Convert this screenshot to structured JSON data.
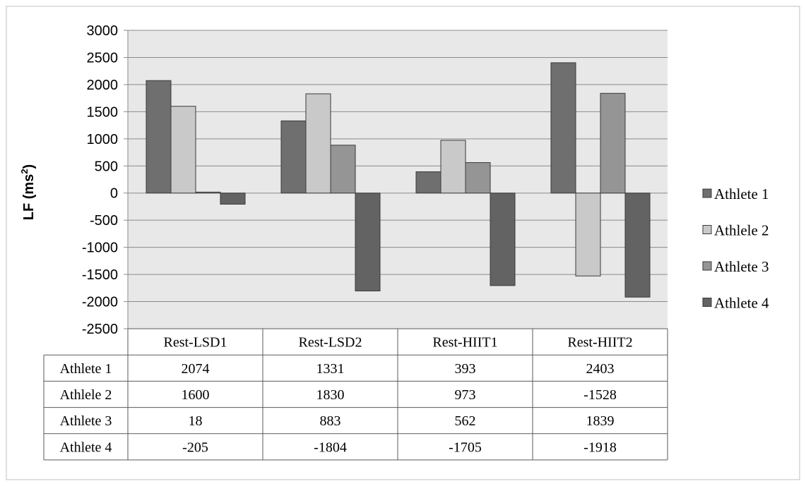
{
  "chart_data": {
    "type": "bar",
    "title": "",
    "xlabel": "",
    "ylabel": "LF (ms",
    "ylabel_sup": "2",
    "ylabel_close": ")",
    "ylim": [
      -2500,
      3000
    ],
    "ytick_step": 500,
    "grid": true,
    "legend_position": "right",
    "categories": [
      "Rest-LSD1",
      "Rest-LSD2",
      "Rest-HIIT1",
      "Rest-HIIT2"
    ],
    "series": [
      {
        "name": "Athlete 1",
        "values": [
          2074,
          1331,
          393,
          2403
        ],
        "color": "#6f6f6f"
      },
      {
        "name": "Athlele 2",
        "values": [
          1600,
          1830,
          973,
          -1528
        ],
        "color": "#c9c9c9"
      },
      {
        "name": "Athlete 3",
        "values": [
          18,
          883,
          562,
          1839
        ],
        "color": "#959595"
      },
      {
        "name": "Athlete 4",
        "values": [
          -205,
          -1804,
          -1705,
          -1918
        ],
        "color": "#636363"
      }
    ],
    "data_table": true,
    "plot_background": "#e8e8e8"
  }
}
